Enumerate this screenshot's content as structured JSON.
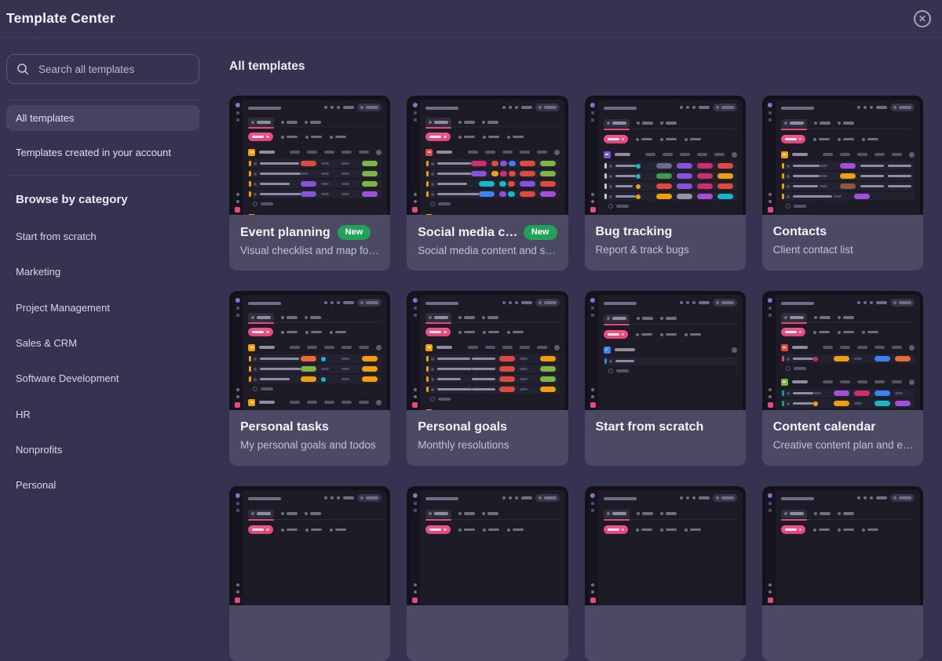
{
  "header": {
    "title": "Template Center"
  },
  "icons": {
    "close": "circled-x",
    "search": "magnifier"
  },
  "colors": {
    "background": "#363350",
    "card_footer": "#4c4965",
    "accent_pink": "#e84a7d",
    "badge_green": "#22a15a",
    "thumb_app_bg": "#1d1b26"
  },
  "sidebar": {
    "search_placeholder": "Search all templates",
    "nav": [
      {
        "label": "All templates",
        "selected": true
      },
      {
        "label": "Templates created in your account",
        "selected": false
      }
    ],
    "browse_heading": "Browse by category",
    "categories": [
      "Start from scratch",
      "Marketing",
      "Project Management",
      "Sales & CRM",
      "Software Development",
      "HR",
      "Nonprofits",
      "Personal"
    ]
  },
  "main": {
    "heading": "All templates",
    "cards": [
      {
        "title": "Event planning",
        "badge": "New",
        "description": "Visual checklist and map fo…",
        "thumb": {
          "sections": [
            {
              "icon": "#f59e0b",
              "rows": [
                [
                  "#e0493c",
                  null,
                  null,
                  "#7fb543"
                ],
                [
                  null,
                  null,
                  null,
                  "#7fb543"
                ],
                [
                  "#8952dd",
                  null,
                  null,
                  "#7fb543"
                ],
                [
                  "#8952dd",
                  null,
                  null,
                  "#a44ede"
                ]
              ]
            },
            {
              "icon": "#f59e0b",
              "rows": [
                [
                  "#8952dd",
                  null,
                  null,
                  "#a44ede"
                ],
                [
                  "#8952dd",
                  null,
                  null,
                  "#7fb543"
                ],
                [
                  "#8952dd",
                  null,
                  null,
                  "#e8622c"
                ],
                [
                  "#8952dd",
                  null,
                  null,
                  "#14b8c9"
                ]
              ]
            }
          ]
        }
      },
      {
        "title": "Social media c…",
        "badge": "New",
        "description": "Social media content and s…",
        "thumb": {
          "sections": [
            {
              "icon": "#e0493c",
              "rows": [
                [
                  "#cf2d6f",
                  [
                    "#e0493c",
                    "#8952dd",
                    "#3b82f6"
                  ],
                  "#e0493c",
                  "#7fb543"
                ],
                [
                  "#8952dd",
                  [
                    "#f59e0b",
                    "#cf2d6f",
                    "#e0493c"
                  ],
                  "#e0493c",
                  "#7fb543"
                ],
                [
                  "#14b8c9",
                  [
                    "#14b8c9",
                    "#e0493c"
                  ],
                  "#8952dd",
                  "#e0493c"
                ],
                [
                  "#3b82f6",
                  [
                    "#8952dd",
                    "#14b8c9"
                  ],
                  "#e0493c",
                  "#a44ede"
                ]
              ]
            },
            {
              "icon": "#f59e0b",
              "rows": [
                [
                  "#cf2d6f",
                  [
                    "#e0493c",
                    "#8952dd"
                  ],
                  "#8952dd",
                  "#f59e0b"
                ],
                [
                  "#9593a8",
                  [
                    "#14b8c9",
                    "#3b82f6"
                  ],
                  "#8952dd",
                  "#f59e0b"
                ]
              ]
            }
          ]
        }
      },
      {
        "title": "Bug tracking",
        "badge": null,
        "description": "Report & track bugs",
        "thumb": {
          "sections": [
            {
              "icon": "#7e54d8",
              "lw": 34,
              "marker": "#c9c7d6",
              "rows": [
                [
                  "dot:#14b8c9",
                  "#6e6a8f",
                  "#8952dd",
                  "#cf2d6f",
                  "#e0493c"
                ],
                [
                  "dot:#14b8c9",
                  "#3f9a52",
                  "#8952dd",
                  "#cf2d6f",
                  "#f59e0b"
                ],
                [
                  "dot:#f59e0b",
                  "#e0493c",
                  "#8952dd",
                  "#cf2d6f",
                  "#e0493c"
                ],
                [
                  "dot:#f59e0b",
                  "#f59e0b",
                  "#9593a8",
                  "#a44ede",
                  "#14b8c9"
                ]
              ]
            }
          ]
        }
      },
      {
        "title": "Contacts",
        "badge": null,
        "description": "Client contact list",
        "thumb": {
          "sections": [
            {
              "icon": "#f59e0b",
              "lw": 44,
              "rows": [
                [
                  null,
                  "#a44ede",
                  "bar",
                  "bar"
                ],
                [
                  null,
                  "#f59e0b",
                  "bar",
                  "bar"
                ],
                [
                  null,
                  "#8a5a3b",
                  "bar",
                  "bar"
                ],
                [
                  null,
                  "#a44ede",
                  "",
                  ""
                ]
              ]
            }
          ]
        }
      },
      {
        "title": "Personal tasks",
        "badge": null,
        "description": "My personal goals and todos",
        "thumb": {
          "sections": [
            {
              "icon": "#f59e0b",
              "rows": [
                [
                  "#ed6a2c",
                  "dot:#14b8c9",
                  null,
                  "#f59e0b"
                ],
                [
                  "#7fb543",
                  null,
                  null,
                  "#f59e0b"
                ],
                [
                  "#f59e0b",
                  "dot:#14b8c9",
                  null,
                  "#f59e0b"
                ]
              ]
            },
            {
              "icon": "#f59e0b",
              "rows": [
                [
                  "#7fb543",
                  "dot:#14b8c9",
                  null,
                  "#f59e0b"
                ],
                [
                  "#f59e0b",
                  null,
                  null,
                  "#f59e0b"
                ]
              ]
            },
            {
              "icon": "#7fb543",
              "rows": [
                [
                  "#f59e0b",
                  "dot:#14b8c9",
                  null,
                  "#7fb543"
                ]
              ]
            }
          ]
        }
      },
      {
        "title": "Personal goals",
        "badge": null,
        "description": "Monthly resolutions",
        "thumb": {
          "sections": [
            {
              "icon": "#f59e0b",
              "lw": 42,
              "rows": [
                [
                  "bar",
                  "#e0493c",
                  null,
                  "#f59e0b"
                ],
                [
                  "bar",
                  "#e0493c",
                  null,
                  "#7fb543"
                ],
                [
                  "bar",
                  "#e0493c",
                  null,
                  "#7fb543"
                ],
                [
                  "bar",
                  "#e0493c",
                  null,
                  "#f59e0b"
                ]
              ]
            },
            {
              "icon": "#f59e0b",
              "lw": 42,
              "rows": [
                [
                  "bar",
                  "#e0493c",
                  null,
                  "#a44ede"
                ],
                [
                  "bar",
                  "#e0493c",
                  null,
                  "#7fb543"
                ],
                [
                  "bar",
                  "#f59e0b",
                  null,
                  "#7fb543"
                ],
                [
                  "bar",
                  "#e0493c",
                  null,
                  "#f59e0b"
                ]
              ]
            }
          ]
        }
      },
      {
        "title": "Start from scratch",
        "badge": null,
        "description": "",
        "thumb": {
          "variant": "empty"
        }
      },
      {
        "title": "Content calendar",
        "badge": null,
        "description": "Creative content plan and e…",
        "thumb": {
          "sections": [
            {
              "icon": "#e0493c",
              "lw": 40,
              "marker": "#e0447c",
              "rows": [
                [
                  "dot:#cf2d6f",
                  "#f59e0b",
                  null,
                  "#3b82f6",
                  "#ed6a2c"
                ]
              ]
            },
            {
              "icon": "#7fb543",
              "lw": 40,
              "marker": "#159e8c",
              "rows": [
                [
                  null,
                  "#a44ede",
                  "#cf2d6f",
                  "#3b82f6",
                  null
                ],
                [
                  "dot:#f59e0b",
                  "#f59e0b",
                  null,
                  "#14b8c9",
                  "#a44ede"
                ]
              ]
            },
            {
              "icon": "#e0493c",
              "lw": 40,
              "marker": "#e0447c",
              "rows": [
                [
                  "dot:#7e54d8",
                  "#8a5a3b",
                  null,
                  "#159e8c",
                  "#cf2d6f"
                ]
              ]
            }
          ]
        }
      },
      {
        "title": "",
        "badge": null,
        "description": "",
        "thumb": {
          "variant": "header-only"
        }
      },
      {
        "title": "",
        "badge": null,
        "description": "",
        "thumb": {
          "variant": "header-only"
        }
      },
      {
        "title": "",
        "badge": null,
        "description": "",
        "thumb": {
          "variant": "header-only"
        }
      },
      {
        "title": "",
        "badge": null,
        "description": "",
        "thumb": {
          "variant": "header-only"
        }
      }
    ]
  }
}
